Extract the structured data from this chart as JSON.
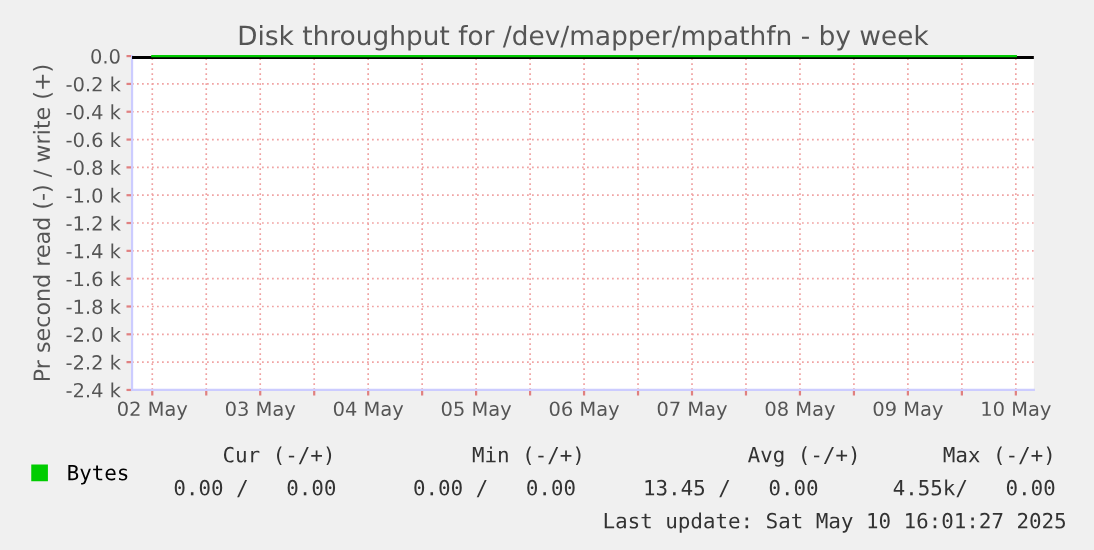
{
  "chart_data": {
    "type": "line",
    "title": "Disk throughput for /dev/mapper/mpathfn - by week",
    "ylabel": "Pr second read (-) / write (+)",
    "x": [
      "2025-05-02T12:00",
      "2025-05-03T12:00",
      "2025-05-04T12:00",
      "2025-05-05T12:00",
      "2025-05-06T12:00",
      "2025-05-07T12:00",
      "2025-05-08T12:00",
      "2025-05-09T12:00",
      "2025-05-10T12:00"
    ],
    "series": [
      {
        "name": "Bytes",
        "color": "#00cc00",
        "values": [
          0,
          0,
          0,
          0,
          0,
          0,
          0,
          0,
          0
        ]
      }
    ],
    "xlim": [
      "2025-05-02T07:30",
      "2025-05-10T16:00"
    ],
    "xticks": [
      {
        "value": "2025-05-02T12:00",
        "label": "02 May"
      },
      {
        "value": "2025-05-03T00:00",
        "label": null
      },
      {
        "value": "2025-05-03T12:00",
        "label": "03 May"
      },
      {
        "value": "2025-05-04T00:00",
        "label": null
      },
      {
        "value": "2025-05-04T12:00",
        "label": "04 May"
      },
      {
        "value": "2025-05-05T00:00",
        "label": null
      },
      {
        "value": "2025-05-05T12:00",
        "label": "05 May"
      },
      {
        "value": "2025-05-06T00:00",
        "label": null
      },
      {
        "value": "2025-05-06T12:00",
        "label": "06 May"
      },
      {
        "value": "2025-05-07T00:00",
        "label": null
      },
      {
        "value": "2025-05-07T12:00",
        "label": "07 May"
      },
      {
        "value": "2025-05-08T00:00",
        "label": null
      },
      {
        "value": "2025-05-08T12:00",
        "label": "08 May"
      },
      {
        "value": "2025-05-09T00:00",
        "label": null
      },
      {
        "value": "2025-05-09T12:00",
        "label": "09 May"
      },
      {
        "value": "2025-05-10T00:00",
        "label": null
      },
      {
        "value": "2025-05-10T12:00",
        "label": "10 May"
      }
    ],
    "ylim": [
      -2400,
      0
    ],
    "yticks": [
      {
        "value": 0,
        "label": "0.0"
      },
      {
        "value": -200,
        "label": "-0.2 k"
      },
      {
        "value": -400,
        "label": "-0.4 k"
      },
      {
        "value": -600,
        "label": "-0.6 k"
      },
      {
        "value": -800,
        "label": "-0.8 k"
      },
      {
        "value": -1000,
        "label": "-1.0 k"
      },
      {
        "value": -1200,
        "label": "-1.2 k"
      },
      {
        "value": -1400,
        "label": "-1.4 k"
      },
      {
        "value": -1600,
        "label": "-1.6 k"
      },
      {
        "value": -1800,
        "label": "-1.8 k"
      },
      {
        "value": -2000,
        "label": "-2.0 k"
      },
      {
        "value": -2200,
        "label": "-2.2 k"
      },
      {
        "value": -2400,
        "label": "-2.4 k"
      }
    ],
    "ref_lines": [
      {
        "axis": "y",
        "value": 0,
        "color": "#000000"
      }
    ],
    "grid": true,
    "legend": "bottom left",
    "annotations": [
      "Cur (-/+)",
      "Min (-/+)",
      "Avg (-/+)",
      "Max (-/+)",
      "0.00 /   0.00",
      "0.00 /   0.00",
      "13.45 /   0.00",
      "4.55k/   0.00",
      "Last update: Sat May 10 16:01:27 2025"
    ]
  }
}
